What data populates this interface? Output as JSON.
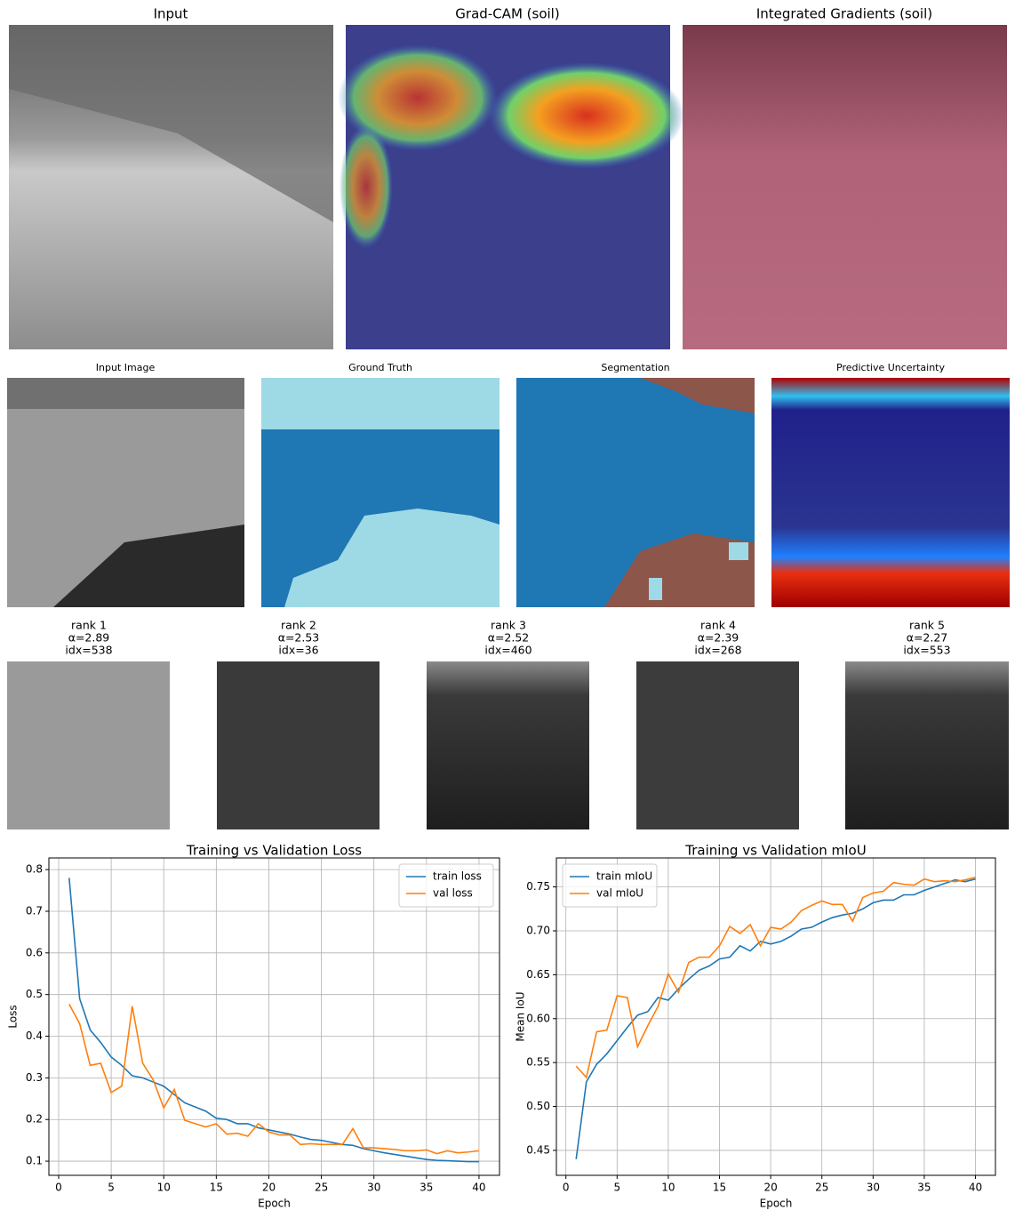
{
  "explain_row": {
    "titles": [
      "Input",
      "Grad-CAM (soil)",
      "Integrated Gradients (soil)"
    ]
  },
  "uncertainty_row": {
    "titles": [
      "Input Image",
      "Ground Truth",
      "Segmentation",
      "Predictive Uncertainty"
    ]
  },
  "retrieval_row": [
    {
      "rank": "rank 1",
      "alpha": "α=2.89",
      "idx": "idx=538"
    },
    {
      "rank": "rank 2",
      "alpha": "α=2.53",
      "idx": "idx=36"
    },
    {
      "rank": "rank 3",
      "alpha": "α=2.52",
      "idx": "idx=460"
    },
    {
      "rank": "rank 4",
      "alpha": "α=2.39",
      "idx": "idx=268"
    },
    {
      "rank": "rank 5",
      "alpha": "α=2.27",
      "idx": "idx=553"
    }
  ],
  "chart_data": [
    {
      "type": "line",
      "title": "Training vs Validation Loss",
      "x_label": "Epoch",
      "y_label": "Loss",
      "x": [
        1,
        2,
        3,
        4,
        5,
        6,
        7,
        8,
        9,
        10,
        11,
        12,
        13,
        14,
        15,
        16,
        17,
        18,
        19,
        20,
        21,
        22,
        23,
        24,
        25,
        26,
        27,
        28,
        29,
        30,
        31,
        32,
        33,
        34,
        35,
        36,
        37,
        38,
        39,
        40
      ],
      "series": [
        {
          "name": "train loss",
          "color": "#1f77b4",
          "values": [
            0.78,
            0.49,
            0.415,
            0.385,
            0.35,
            0.33,
            0.305,
            0.3,
            0.29,
            0.28,
            0.26,
            0.24,
            0.23,
            0.22,
            0.203,
            0.2,
            0.19,
            0.19,
            0.18,
            0.175,
            0.17,
            0.165,
            0.158,
            0.152,
            0.15,
            0.145,
            0.14,
            0.138,
            0.13,
            0.125,
            0.12,
            0.116,
            0.112,
            0.108,
            0.104,
            0.102,
            0.101,
            0.1,
            0.099,
            0.099
          ]
        },
        {
          "name": "val loss",
          "color": "#ff7f0e",
          "values": [
            0.477,
            0.43,
            0.33,
            0.335,
            0.265,
            0.28,
            0.472,
            0.335,
            0.295,
            0.228,
            0.272,
            0.198,
            0.19,
            0.182,
            0.19,
            0.165,
            0.167,
            0.16,
            0.19,
            0.17,
            0.163,
            0.163,
            0.14,
            0.142,
            0.14,
            0.14,
            0.14,
            0.178,
            0.132,
            0.132,
            0.13,
            0.128,
            0.125,
            0.125,
            0.127,
            0.118,
            0.125,
            0.12,
            0.122,
            0.125
          ]
        }
      ],
      "xlim": [
        -0.93,
        41.95
      ],
      "ylim": [
        0.066,
        0.828
      ],
      "xticks": [
        0,
        5,
        10,
        15,
        20,
        25,
        30,
        35,
        40
      ],
      "yticks": [
        0.1,
        0.2,
        0.3,
        0.4,
        0.5,
        0.6,
        0.7,
        0.8
      ],
      "grid": true,
      "legend": "upper right"
    },
    {
      "type": "line",
      "title": "Training vs Validation mIoU",
      "x_label": "Epoch",
      "y_label": "Mean IoU",
      "x": [
        1,
        2,
        3,
        4,
        5,
        6,
        7,
        8,
        9,
        10,
        11,
        12,
        13,
        14,
        15,
        16,
        17,
        18,
        19,
        20,
        21,
        22,
        23,
        24,
        25,
        26,
        27,
        28,
        29,
        30,
        31,
        32,
        33,
        34,
        35,
        36,
        37,
        38,
        39,
        40
      ],
      "series": [
        {
          "name": "train mIoU",
          "color": "#1f77b4",
          "values": [
            0.44,
            0.528,
            0.548,
            0.56,
            0.575,
            0.59,
            0.604,
            0.608,
            0.624,
            0.621,
            0.634,
            0.645,
            0.655,
            0.66,
            0.668,
            0.67,
            0.683,
            0.677,
            0.688,
            0.685,
            0.688,
            0.694,
            0.702,
            0.704,
            0.71,
            0.715,
            0.718,
            0.72,
            0.725,
            0.732,
            0.735,
            0.735,
            0.741,
            0.741,
            0.746,
            0.75,
            0.754,
            0.758,
            0.756,
            0.759
          ]
        },
        {
          "name": "val mIoU",
          "color": "#ff7f0e",
          "values": [
            0.546,
            0.533,
            0.585,
            0.587,
            0.626,
            0.624,
            0.568,
            0.592,
            0.614,
            0.651,
            0.63,
            0.664,
            0.67,
            0.67,
            0.683,
            0.705,
            0.697,
            0.707,
            0.683,
            0.704,
            0.702,
            0.71,
            0.723,
            0.729,
            0.734,
            0.73,
            0.73,
            0.711,
            0.738,
            0.743,
            0.745,
            0.755,
            0.753,
            0.752,
            0.759,
            0.756,
            0.757,
            0.756,
            0.758,
            0.761
          ]
        }
      ],
      "xlim": [
        -0.93,
        41.95
      ],
      "ylim": [
        0.4216,
        0.783
      ],
      "xticks": [
        0,
        5,
        10,
        15,
        20,
        25,
        30,
        35,
        40
      ],
      "yticks": [
        0.45,
        {
          "value": 0.5,
          "label": "0.50"
        },
        0.55,
        {
          "value": 0.6,
          "label": "0.60"
        },
        0.65,
        {
          "value": 0.7,
          "label": "0.70"
        },
        0.75
      ],
      "grid": true,
      "legend": "upper left"
    }
  ]
}
